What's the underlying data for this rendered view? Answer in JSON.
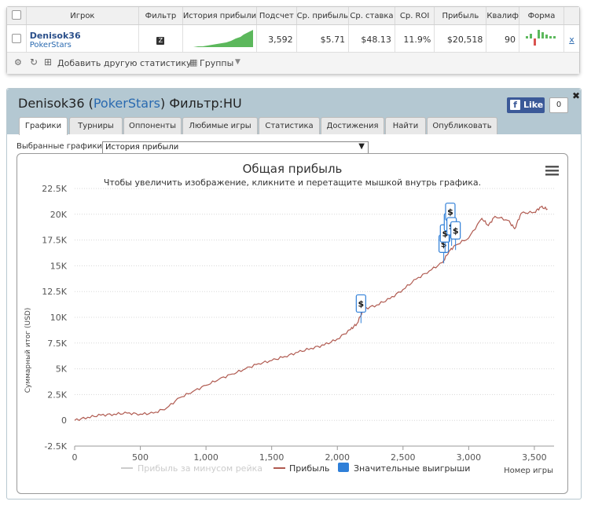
{
  "table": {
    "headers": [
      "Игрок",
      "Фильтр",
      "История прибыли",
      "Подсчет",
      "Ср. прибыль",
      "Ср. ставка",
      "Ср. ROI",
      "Прибыль",
      "Квалиф",
      "Форма"
    ],
    "row": {
      "player": "Denisok36",
      "site": "PokerStars",
      "count": "3,592",
      "avg_profit": "$5.71",
      "avg_stake": "$48.13",
      "avg_roi": "11.9%",
      "profit": "$20,518",
      "qualif": "90",
      "remove": "x"
    }
  },
  "toolbar": {
    "add_label": "Добавить другую статистику",
    "groups_label": "Группы"
  },
  "panel": {
    "player": "Denisok36",
    "site": "PokerStars",
    "filter_label": "Фильтр:HU",
    "like_label": "Like",
    "like_count": "0",
    "tabs": [
      "Графики",
      "Турниры",
      "Оппоненты",
      "Любимые игры",
      "Статистика",
      "Достижения",
      "Найти",
      "Опубликовать"
    ],
    "selected_label": "Выбранные графики:",
    "selected_value": "История прибыли"
  },
  "colors": {
    "profit_line": "#b05a50",
    "bigwin": "#2f7fd8",
    "no_rake": "#cccccc",
    "spark": "#5cb85c"
  },
  "chart_data": {
    "type": "line",
    "title": "Общая прибыль",
    "subtitle": "Чтобы увеличить изображение, кликните и перетащите мышкой внутрь графика.",
    "ylabel": "Суммарный итог (USD)",
    "xlabel": "Номер игры",
    "xlim": [
      0,
      3650
    ],
    "ylim": [
      -2500,
      22500
    ],
    "x_ticks": [
      "0",
      "500",
      "1,000",
      "1,500",
      "2,000",
      "2,500",
      "3,000",
      "3,500"
    ],
    "y_ticks": [
      "-2.5K",
      "0",
      "2.5K",
      "5K",
      "7.5K",
      "10K",
      "12.5K",
      "15K",
      "17.5K",
      "20K",
      "22.5K"
    ],
    "legend": [
      "Прибыль за минусом рейка",
      "Прибыль",
      "Значительные выигрыши"
    ],
    "legend_placement": "bottom",
    "series": [
      {
        "name": "Прибыль",
        "x": [
          0,
          100,
          200,
          300,
          400,
          500,
          600,
          700,
          800,
          900,
          1000,
          1100,
          1200,
          1300,
          1400,
          1500,
          1600,
          1700,
          1800,
          1900,
          2000,
          2100,
          2150,
          2200,
          2300,
          2400,
          2500,
          2600,
          2700,
          2800,
          2850,
          2900,
          3000,
          3100,
          3150,
          3200,
          3300,
          3350,
          3400,
          3500,
          3550,
          3600
        ],
        "values": [
          0,
          300,
          500,
          600,
          700,
          600,
          700,
          1200,
          2200,
          2800,
          3400,
          4000,
          4500,
          5000,
          5500,
          5800,
          6200,
          6600,
          7000,
          7300,
          7900,
          8800,
          9400,
          10800,
          11200,
          11800,
          12700,
          13700,
          14500,
          15300,
          16400,
          17000,
          17700,
          19600,
          18900,
          19800,
          19400,
          18600,
          20100,
          20200,
          20700,
          20500
        ]
      }
    ],
    "big_wins": [
      {
        "x": 2180,
        "y": 10500
      },
      {
        "x": 2810,
        "y": 16300
      },
      {
        "x": 2820,
        "y": 17300
      },
      {
        "x": 2850,
        "y": 18400
      },
      {
        "x": 2860,
        "y": 19400
      },
      {
        "x": 2870,
        "y": 18000
      },
      {
        "x": 2900,
        "y": 17600
      }
    ]
  }
}
